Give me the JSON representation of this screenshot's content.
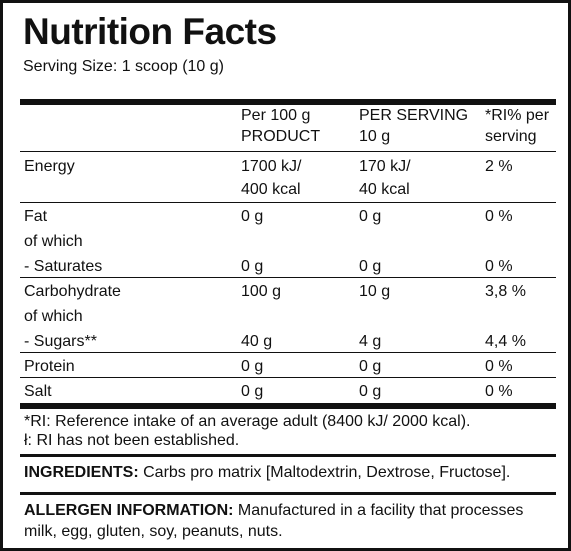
{
  "title": "Nutrition Facts",
  "serving_size": "Serving Size: 1 scoop (10 g)",
  "table": {
    "headers": [
      {
        "line1": "",
        "line2": ""
      },
      {
        "line1": "Per 100 g",
        "line2": "PRODUCT"
      },
      {
        "line1": "PER SERVING",
        "line2": "10 g"
      },
      {
        "line1": "*RI% per",
        "line2": "serving"
      }
    ],
    "energy": {
      "label": "Energy",
      "per100_l1": "1700 kJ/",
      "per100_l2": "400 kcal",
      "serving_l1": "170 kJ/",
      "serving_l2": "40 kcal",
      "ri": "2 %"
    },
    "fat": {
      "label": "Fat",
      "per100": "0 g",
      "serving": "0 g",
      "ri": "0 %"
    },
    "fat_of_which": "of which",
    "saturates": {
      "label": "- Saturates",
      "per100": "0 g",
      "serving": "0 g",
      "ri": "0 %"
    },
    "carbohydrate": {
      "label": "Carbohydrate",
      "per100": "100 g",
      "serving": "10 g",
      "ri": "3,8 %"
    },
    "carb_of_which": "of which",
    "sugars": {
      "label": "- Sugars**",
      "per100": "40 g",
      "serving": "4 g",
      "ri": "4,4 %"
    },
    "protein": {
      "label": "Protein",
      "per100": "0 g",
      "serving": "0 g",
      "ri": "0 %"
    },
    "salt": {
      "label": "Salt",
      "per100": "0 g",
      "serving": "0 g",
      "ri": "0 %"
    }
  },
  "footnotes": {
    "ri": "*RI: Reference intake of an average adult (8400 kJ/ 2000 kcal).",
    "not_established": "ł: RI has not been established."
  },
  "ingredients": {
    "label": "INGREDIENTS:",
    "text": " Carbs pro matrix [Maltodextrin, Dextrose, Fructose]."
  },
  "allergen": {
    "label": "ALLERGEN INFORMATION:",
    "text": "  Manufactured in a facility that processes milk, egg, gluten, soy, peanuts, nuts."
  }
}
